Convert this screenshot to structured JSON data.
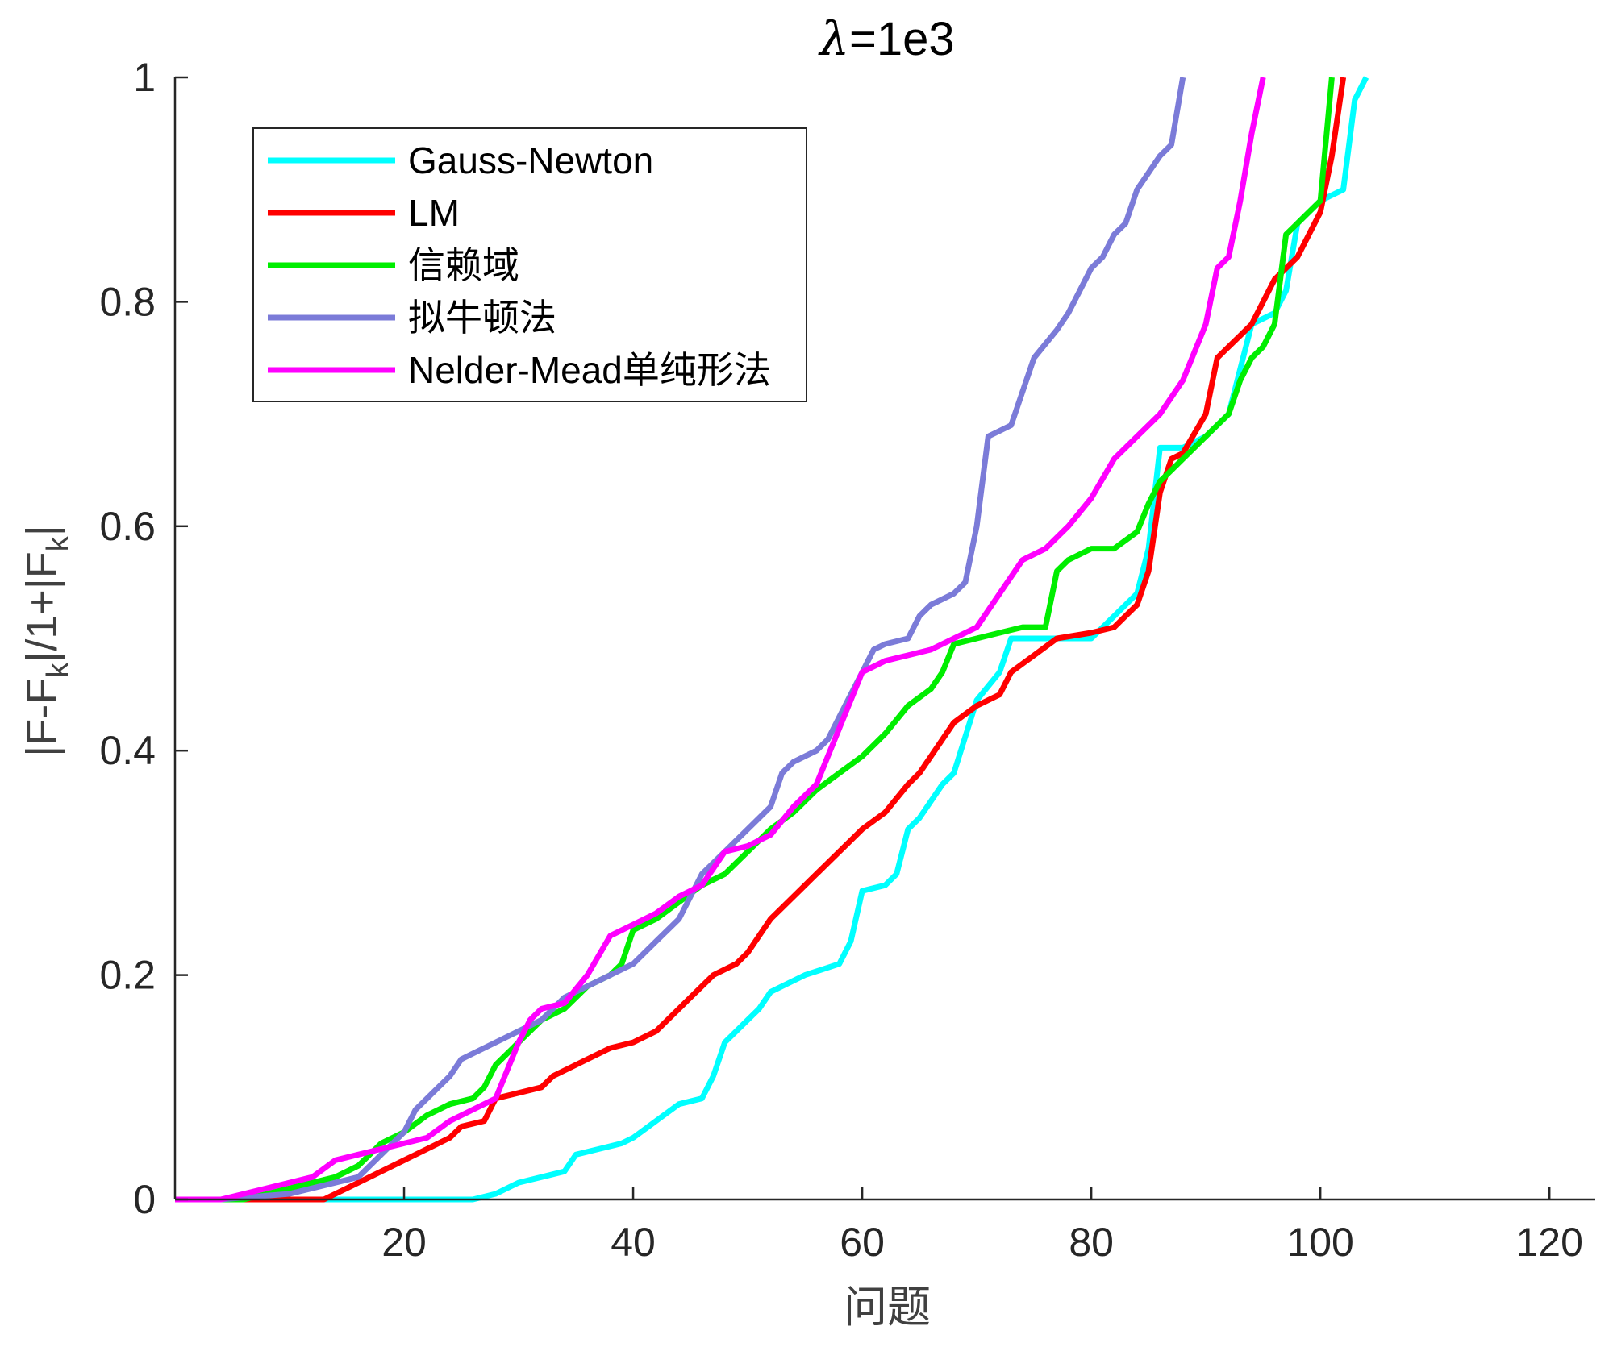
{
  "chart_data": {
    "type": "line",
    "title_symbol": "λ",
    "title_rest": "=1e3",
    "xlabel": "问题",
    "ylabel_parts": [
      "|F-F",
      "k",
      "|/1+|F",
      "k",
      "|"
    ],
    "xlim": [
      0,
      124
    ],
    "ylim": [
      0,
      1
    ],
    "xticks": [
      "20",
      "40",
      "60",
      "80",
      "100",
      "120"
    ],
    "yticks": [
      "0",
      "0.2",
      "0.4",
      "0.6",
      "0.8",
      "1"
    ],
    "grid": false,
    "legend_position": "top-left",
    "series": [
      {
        "name": "Gauss-Newton",
        "color": "#00FFFF",
        "x": [
          0,
          26,
          28,
          30,
          32,
          34,
          35,
          37,
          39,
          40,
          42,
          44,
          46,
          47,
          48,
          50,
          51,
          52,
          53,
          55,
          58,
          59,
          60,
          62,
          63,
          64,
          65,
          67,
          68,
          70,
          72,
          73,
          75,
          80,
          82,
          84,
          85,
          86,
          88,
          90,
          92,
          94,
          96,
          97,
          98,
          100,
          102,
          103,
          104
        ],
        "y": [
          0,
          0,
          0.005,
          0.015,
          0.02,
          0.025,
          0.04,
          0.045,
          0.05,
          0.055,
          0.07,
          0.085,
          0.09,
          0.11,
          0.14,
          0.16,
          0.17,
          0.185,
          0.19,
          0.2,
          0.21,
          0.23,
          0.275,
          0.28,
          0.29,
          0.33,
          0.34,
          0.37,
          0.38,
          0.445,
          0.47,
          0.5,
          0.5,
          0.5,
          0.52,
          0.54,
          0.58,
          0.67,
          0.67,
          0.68,
          0.7,
          0.78,
          0.79,
          0.81,
          0.87,
          0.89,
          0.9,
          0.98,
          1.0
        ]
      },
      {
        "name": "LM",
        "color": "#FF0000",
        "x": [
          0,
          13,
          15,
          17,
          20,
          22,
          24,
          25,
          27,
          28,
          30,
          32,
          33,
          35,
          36,
          38,
          40,
          42,
          44,
          45,
          47,
          49,
          50,
          52,
          53,
          55,
          56,
          57,
          58,
          60,
          62,
          64,
          65,
          66,
          67,
          68,
          70,
          72,
          73,
          75,
          77,
          80,
          82,
          84,
          85,
          86,
          87,
          88,
          90,
          91,
          92,
          93,
          94,
          95,
          96,
          97,
          98,
          99,
          100,
          101,
          102
        ],
        "y": [
          0,
          0,
          0.01,
          0.02,
          0.035,
          0.045,
          0.055,
          0.065,
          0.07,
          0.09,
          0.095,
          0.1,
          0.11,
          0.12,
          0.125,
          0.135,
          0.14,
          0.15,
          0.17,
          0.18,
          0.2,
          0.21,
          0.22,
          0.25,
          0.26,
          0.28,
          0.29,
          0.3,
          0.31,
          0.33,
          0.345,
          0.37,
          0.38,
          0.395,
          0.41,
          0.425,
          0.44,
          0.45,
          0.47,
          0.485,
          0.5,
          0.505,
          0.51,
          0.53,
          0.56,
          0.63,
          0.66,
          0.665,
          0.7,
          0.75,
          0.76,
          0.77,
          0.78,
          0.8,
          0.82,
          0.83,
          0.84,
          0.86,
          0.88,
          0.93,
          1.0
        ]
      },
      {
        "name": "信赖域",
        "color": "#00EE00",
        "x": [
          0,
          6,
          10,
          14,
          16,
          18,
          20,
          22,
          24,
          26,
          27,
          28,
          30,
          32,
          34,
          36,
          38,
          39,
          40,
          42,
          44,
          46,
          48,
          50,
          52,
          54,
          56,
          58,
          60,
          62,
          64,
          66,
          67,
          68,
          70,
          72,
          74,
          76,
          77,
          78,
          80,
          82,
          84,
          85,
          86,
          87,
          88,
          90,
          92,
          93,
          94,
          95,
          96,
          97,
          98,
          99,
          100,
          101
        ],
        "y": [
          0,
          0,
          0.01,
          0.02,
          0.03,
          0.05,
          0.06,
          0.075,
          0.085,
          0.09,
          0.1,
          0.12,
          0.14,
          0.16,
          0.17,
          0.19,
          0.2,
          0.21,
          0.24,
          0.25,
          0.265,
          0.28,
          0.29,
          0.31,
          0.33,
          0.345,
          0.365,
          0.38,
          0.395,
          0.415,
          0.44,
          0.455,
          0.47,
          0.495,
          0.5,
          0.505,
          0.51,
          0.51,
          0.56,
          0.57,
          0.58,
          0.58,
          0.595,
          0.62,
          0.64,
          0.65,
          0.66,
          0.68,
          0.7,
          0.73,
          0.75,
          0.76,
          0.78,
          0.86,
          0.87,
          0.88,
          0.89,
          1.0
        ]
      },
      {
        "name": "拟牛顿法",
        "color": "#7B7BD8",
        "x": [
          0,
          4,
          10,
          16,
          19,
          20,
          21,
          22,
          23,
          24,
          25,
          26,
          28,
          30,
          32,
          34,
          36,
          38,
          40,
          42,
          44,
          45,
          46,
          48,
          50,
          52,
          53,
          54,
          56,
          57,
          58,
          59,
          60,
          61,
          62,
          64,
          65,
          66,
          67,
          68,
          69,
          70,
          71,
          72,
          73,
          74,
          75,
          77,
          78,
          79,
          80,
          81,
          82,
          83,
          84,
          85,
          86,
          87,
          88
        ],
        "y": [
          0,
          0,
          0.005,
          0.02,
          0.05,
          0.06,
          0.08,
          0.09,
          0.1,
          0.11,
          0.125,
          0.13,
          0.14,
          0.15,
          0.16,
          0.18,
          0.19,
          0.2,
          0.21,
          0.23,
          0.25,
          0.27,
          0.29,
          0.31,
          0.33,
          0.35,
          0.38,
          0.39,
          0.4,
          0.41,
          0.43,
          0.45,
          0.47,
          0.49,
          0.495,
          0.5,
          0.52,
          0.53,
          0.535,
          0.54,
          0.55,
          0.6,
          0.68,
          0.685,
          0.69,
          0.72,
          0.75,
          0.775,
          0.79,
          0.81,
          0.83,
          0.84,
          0.86,
          0.87,
          0.9,
          0.915,
          0.93,
          0.94,
          1.0
        ]
      },
      {
        "name": "Nelder-Mead单纯形法",
        "color": "#FF00FF",
        "x": [
          0,
          4,
          8,
          10,
          12,
          14,
          16,
          18,
          20,
          22,
          24,
          26,
          28,
          30,
          31,
          32,
          34,
          36,
          38,
          40,
          42,
          44,
          46,
          48,
          50,
          52,
          54,
          56,
          58,
          60,
          62,
          64,
          66,
          68,
          70,
          72,
          74,
          76,
          78,
          80,
          82,
          84,
          86,
          88,
          90,
          91,
          92,
          93,
          94,
          95
        ],
        "y": [
          0,
          0,
          0.01,
          0.015,
          0.02,
          0.035,
          0.04,
          0.045,
          0.05,
          0.055,
          0.07,
          0.08,
          0.09,
          0.14,
          0.16,
          0.17,
          0.175,
          0.2,
          0.235,
          0.245,
          0.255,
          0.27,
          0.28,
          0.31,
          0.315,
          0.325,
          0.35,
          0.37,
          0.42,
          0.47,
          0.48,
          0.485,
          0.49,
          0.5,
          0.51,
          0.54,
          0.57,
          0.58,
          0.6,
          0.625,
          0.66,
          0.68,
          0.7,
          0.73,
          0.78,
          0.83,
          0.84,
          0.89,
          0.95,
          1.0
        ]
      }
    ]
  }
}
